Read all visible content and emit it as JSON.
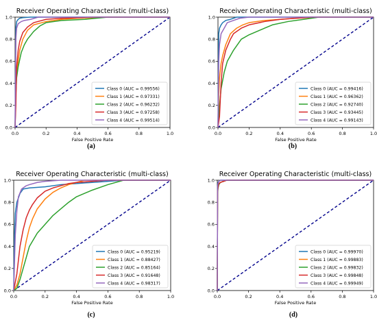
{
  "figure": {
    "panels": [
      {
        "caption": "(a)"
      },
      {
        "caption": "(b)"
      },
      {
        "caption": "(c)"
      },
      {
        "caption": "(d)"
      }
    ]
  },
  "colors": {
    "class0": "#1f77b4",
    "class1": "#ff7f0e",
    "class2": "#2ca02c",
    "class3": "#d62728",
    "class4": "#9467bd",
    "chance": "#00008b"
  },
  "chart_data": [
    {
      "type": "line",
      "title": "Receiver Operating Characteristic (multi-class)",
      "xlabel": "False Positive Rate",
      "ylabel": "",
      "xlim": [
        0,
        1
      ],
      "ylim": [
        0,
        1
      ],
      "xticks": [
        "0.0",
        "0.2",
        "0.4",
        "0.6",
        "0.8",
        "1.0"
      ],
      "yticks": [
        "0.0",
        "0.2",
        "0.4",
        "0.6",
        "0.8",
        "1.0"
      ],
      "legend_position": "lower-right",
      "chance_line": true,
      "series": [
        {
          "name": "Class 0 (AUC = 0.99556)",
          "x": [
            0,
            0.005,
            0.01,
            0.02,
            0.03,
            0.05,
            0.1,
            1
          ],
          "y": [
            0,
            0.9,
            0.96,
            0.98,
            0.99,
            0.995,
            1,
            1
          ]
        },
        {
          "name": "Class 1 (AUC = 0.97331)",
          "x": [
            0,
            0.005,
            0.01,
            0.02,
            0.03,
            0.05,
            0.08,
            0.12,
            0.2,
            0.3,
            0.4,
            0.6,
            1
          ],
          "y": [
            0,
            0.35,
            0.5,
            0.6,
            0.7,
            0.8,
            0.88,
            0.93,
            0.96,
            0.98,
            0.99,
            1,
            1
          ]
        },
        {
          "name": "Class 2 (AUC = 0.96232)",
          "x": [
            0,
            0.005,
            0.01,
            0.02,
            0.04,
            0.06,
            0.08,
            0.12,
            0.16,
            0.2,
            0.3,
            0.45,
            0.6,
            1
          ],
          "y": [
            0,
            0.3,
            0.45,
            0.55,
            0.68,
            0.75,
            0.8,
            0.87,
            0.92,
            0.95,
            0.97,
            0.98,
            1,
            1
          ]
        },
        {
          "name": "Class 3 (AUC = 0.97258)",
          "x": [
            0,
            0.005,
            0.01,
            0.02,
            0.03,
            0.05,
            0.08,
            0.12,
            0.2,
            0.3,
            0.5,
            1
          ],
          "y": [
            0,
            0.2,
            0.55,
            0.7,
            0.78,
            0.86,
            0.91,
            0.95,
            0.98,
            0.99,
            1,
            1
          ]
        },
        {
          "name": "Class 4 (AUC = 0.99514)",
          "x": [
            0,
            0.005,
            0.01,
            0.02,
            0.04,
            0.06,
            0.1,
            0.15,
            1
          ],
          "y": [
            0,
            0.8,
            0.9,
            0.94,
            0.96,
            0.97,
            0.98,
            1,
            1
          ]
        }
      ]
    },
    {
      "type": "line",
      "title": "Receiver Operating Characteristic (multi-class)",
      "xlabel": "False Positive Rate",
      "ylabel": "",
      "xlim": [
        0,
        1
      ],
      "ylim": [
        0,
        1
      ],
      "xticks": [
        "0.0",
        "0.2",
        "0.4",
        "0.6",
        "0.8",
        "1.0"
      ],
      "yticks": [
        "0.0",
        "0.2",
        "0.4",
        "0.6",
        "0.8",
        "1.0"
      ],
      "legend_position": "lower-right",
      "chance_line": true,
      "series": [
        {
          "name": "Class 0 (AUC = 0.99416)",
          "x": [
            0,
            0.005,
            0.01,
            0.02,
            0.03,
            0.05,
            0.08,
            0.12,
            1
          ],
          "y": [
            0,
            0.85,
            0.9,
            0.93,
            0.95,
            0.97,
            0.98,
            1,
            1
          ]
        },
        {
          "name": "Class 1 (AUC = 0.96362)",
          "x": [
            0,
            0.005,
            0.01,
            0.02,
            0.03,
            0.05,
            0.08,
            0.12,
            0.16,
            0.2,
            0.3,
            0.5,
            0.65,
            1
          ],
          "y": [
            0,
            0.3,
            0.45,
            0.58,
            0.65,
            0.75,
            0.85,
            0.9,
            0.93,
            0.95,
            0.97,
            0.99,
            1,
            1
          ]
        },
        {
          "name": "Class 2 (AUC = 0.92740)",
          "x": [
            0,
            0.005,
            0.01,
            0.02,
            0.04,
            0.06,
            0.1,
            0.15,
            0.2,
            0.25,
            0.3,
            0.35,
            0.45,
            0.55,
            0.65,
            1
          ],
          "y": [
            0,
            0.1,
            0.2,
            0.35,
            0.5,
            0.6,
            0.7,
            0.8,
            0.84,
            0.87,
            0.9,
            0.93,
            0.96,
            0.98,
            1,
            1
          ]
        },
        {
          "name": "Class 3 (AUC = 0.93445)",
          "x": [
            0,
            0.005,
            0.01,
            0.02,
            0.03,
            0.05,
            0.08,
            0.1,
            0.15,
            0.2,
            0.3,
            0.4,
            0.5,
            0.6,
            1
          ],
          "y": [
            0,
            0.05,
            0.1,
            0.4,
            0.58,
            0.7,
            0.8,
            0.85,
            0.9,
            0.93,
            0.96,
            0.98,
            0.99,
            1,
            1
          ]
        },
        {
          "name": "Class 4 (AUC = 0.99143)",
          "x": [
            0,
            0.005,
            0.01,
            0.02,
            0.04,
            0.06,
            0.1,
            0.14,
            0.2,
            1
          ],
          "y": [
            0,
            0.6,
            0.75,
            0.85,
            0.9,
            0.95,
            0.97,
            0.99,
            1,
            1
          ]
        }
      ]
    },
    {
      "type": "line",
      "title": "Receiver Operating Characteristic (multi-class)",
      "xlabel": "False Positive Rate",
      "ylabel": "",
      "xlim": [
        0,
        1
      ],
      "ylim": [
        0,
        1
      ],
      "xticks": [
        "0.0",
        "0.2",
        "0.4",
        "0.6",
        "0.8",
        "1.0"
      ],
      "yticks": [
        "0.0",
        "0.2",
        "0.4",
        "0.6",
        "0.8",
        "1.0"
      ],
      "legend_position": "lower-right",
      "chance_line": true,
      "series": [
        {
          "name": "Class 0 (AUC = 0.95219)",
          "x": [
            0,
            0.005,
            0.01,
            0.02,
            0.04,
            0.06,
            0.1,
            0.2,
            0.3,
            0.4,
            0.5,
            0.6,
            0.7,
            1
          ],
          "y": [
            0,
            0.5,
            0.7,
            0.8,
            0.88,
            0.92,
            0.93,
            0.94,
            0.96,
            0.97,
            0.98,
            0.99,
            1,
            1
          ]
        },
        {
          "name": "Class 1 (AUC = 0.88427)",
          "x": [
            0,
            0.02,
            0.04,
            0.06,
            0.08,
            0.1,
            0.12,
            0.15,
            0.2,
            0.25,
            0.3,
            0.35,
            0.4,
            0.45,
            1
          ],
          "y": [
            0,
            0.05,
            0.15,
            0.3,
            0.45,
            0.57,
            0.65,
            0.74,
            0.83,
            0.89,
            0.93,
            0.96,
            0.98,
            1,
            1
          ]
        },
        {
          "name": "Class 2 (AUC = 0.85164)",
          "x": [
            0,
            0.02,
            0.04,
            0.06,
            0.08,
            0.1,
            0.15,
            0.2,
            0.25,
            0.3,
            0.35,
            0.4,
            0.5,
            0.6,
            0.7,
            1
          ],
          "y": [
            0,
            0.02,
            0.1,
            0.2,
            0.3,
            0.4,
            0.52,
            0.6,
            0.68,
            0.74,
            0.8,
            0.85,
            0.91,
            0.96,
            1,
            1
          ]
        },
        {
          "name": "Class 3 (AUC = 0.91648)",
          "x": [
            0,
            0.02,
            0.04,
            0.06,
            0.08,
            0.1,
            0.12,
            0.15,
            0.2,
            0.25,
            0.3,
            0.35,
            0.4,
            0.5,
            0.6,
            1
          ],
          "y": [
            0,
            0.15,
            0.4,
            0.55,
            0.66,
            0.73,
            0.78,
            0.84,
            0.9,
            0.93,
            0.95,
            0.97,
            0.98,
            0.99,
            1,
            1
          ]
        },
        {
          "name": "Class 4 (AUC = 0.98317)",
          "x": [
            0,
            0.01,
            0.02,
            0.03,
            0.05,
            0.08,
            0.1,
            0.15,
            0.2,
            0.3,
            0.4,
            1
          ],
          "y": [
            0,
            0.5,
            0.72,
            0.85,
            0.92,
            0.95,
            0.96,
            0.98,
            0.99,
            1,
            1,
            1
          ]
        }
      ]
    },
    {
      "type": "line",
      "title": "Receiver Operating Characteristic (multi-class)",
      "xlabel": "False Positive Rate",
      "ylabel": "",
      "xlim": [
        0,
        1
      ],
      "ylim": [
        0,
        1
      ],
      "xticks": [
        "0.0",
        "0.2",
        "0.4",
        "0.6",
        "0.8",
        "1.0"
      ],
      "yticks": [
        "0.0",
        "0.2",
        "0.4",
        "0.6",
        "0.8",
        "1.0"
      ],
      "legend_position": "lower-right",
      "chance_line": true,
      "series": [
        {
          "name": "Class 0 (AUC = 0.99970)",
          "x": [
            0,
            0.002,
            0.005,
            0.01,
            0.02,
            0.04,
            1
          ],
          "y": [
            0,
            0.95,
            0.98,
            0.99,
            1,
            1,
            1
          ]
        },
        {
          "name": "Class 1 (AUC = 0.99883)",
          "x": [
            0,
            0.002,
            0.005,
            0.01,
            0.02,
            0.04,
            0.06,
            1
          ],
          "y": [
            0,
            0.9,
            0.95,
            0.97,
            0.98,
            0.99,
            1,
            1
          ]
        },
        {
          "name": "Class 2 (AUC = 0.99832)",
          "x": [
            0,
            0.002,
            0.005,
            0.01,
            0.02,
            0.04,
            0.06,
            1
          ],
          "y": [
            0,
            0.88,
            0.93,
            0.96,
            0.98,
            0.99,
            1,
            1
          ]
        },
        {
          "name": "Class 3 (AUC = 0.99848)",
          "x": [
            0,
            0.002,
            0.005,
            0.01,
            0.02,
            0.04,
            0.06,
            1
          ],
          "y": [
            0,
            0.9,
            0.94,
            0.97,
            0.98,
            0.99,
            1,
            1
          ]
        },
        {
          "name": "Class 4 (AUC = 0.99949)",
          "x": [
            0,
            0.002,
            0.005,
            0.01,
            0.02,
            0.04,
            1
          ],
          "y": [
            0,
            0.94,
            0.97,
            0.99,
            1,
            1,
            1
          ]
        }
      ]
    }
  ]
}
